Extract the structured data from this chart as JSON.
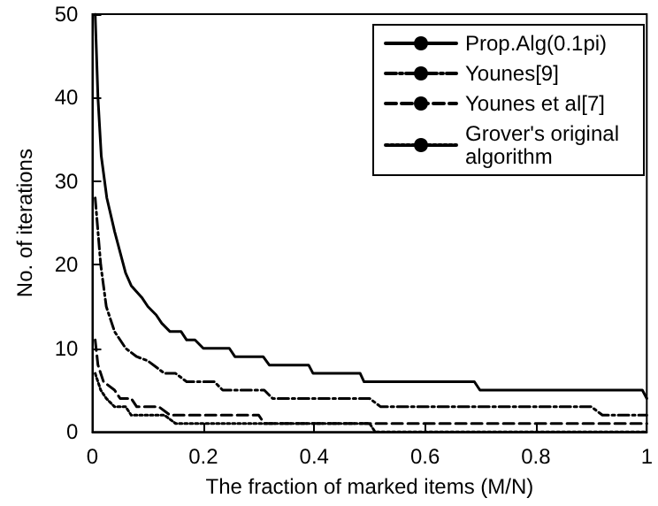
{
  "chart_data": {
    "type": "line",
    "xlabel": "The fraction of marked items (M/N)",
    "ylabel": "No. of iterations",
    "xlim": [
      0,
      1
    ],
    "xticks": [
      0,
      0.2,
      0.4,
      0.6,
      0.8,
      1
    ],
    "ylim": [
      0,
      50
    ],
    "yticks": [
      0,
      10,
      20,
      30,
      40,
      50
    ],
    "grid": false,
    "legend": "top right",
    "marker": "none",
    "series": [
      {
        "name": "Prop.Alg(0.1pi)",
        "color": "#000000",
        "line_style": "solid",
        "x": [
          0.005,
          0.01,
          0.016,
          0.026,
          0.04,
          0.06,
          0.07,
          0.09,
          0.1,
          0.115,
          0.125,
          0.14,
          0.16,
          0.17,
          0.185,
          0.2,
          0.247,
          0.257,
          0.308,
          0.319,
          0.39,
          0.398,
          0.483,
          0.49,
          0.689,
          0.699,
          0.992,
          1
        ],
        "values": [
          50,
          40,
          33,
          28,
          24,
          19,
          17.5,
          16,
          15,
          14,
          13,
          12,
          12,
          11,
          11,
          10,
          10,
          9,
          9,
          8,
          8,
          7,
          7,
          6,
          6,
          5,
          5,
          4
        ]
      },
      {
        "name": "Younes[9]",
        "color": "#000000",
        "line_style": "dashdot",
        "x": [
          0.005,
          0.015,
          0.025,
          0.04,
          0.06,
          0.08,
          0.1,
          0.12,
          0.13,
          0.15,
          0.17,
          0.22,
          0.235,
          0.31,
          0.325,
          0.5,
          0.52,
          0.9,
          0.92,
          1
        ],
        "values": [
          28,
          20,
          15,
          12,
          10,
          9,
          8.5,
          7.5,
          7,
          7,
          6,
          6,
          5,
          5,
          4,
          4,
          3,
          3,
          2,
          2
        ]
      },
      {
        "name": "Younes et al[7]",
        "color": "#000000",
        "line_style": "dashed",
        "x": [
          0.005,
          0.01,
          0.02,
          0.04,
          0.05,
          0.07,
          0.08,
          0.12,
          0.14,
          0.3,
          0.31,
          1
        ],
        "values": [
          11,
          8,
          6,
          5,
          4,
          4,
          3,
          3,
          2,
          2,
          1,
          1
        ]
      },
      {
        "name": "Grover's original algorithm",
        "color": "#000000",
        "line_style": "dotted",
        "x": [
          0.005,
          0.015,
          0.025,
          0.04,
          0.06,
          0.07,
          0.13,
          0.15,
          0.5,
          0.51,
          1
        ],
        "values": [
          7,
          5,
          4,
          3,
          3,
          2,
          2,
          1,
          1,
          0,
          0
        ]
      }
    ]
  }
}
